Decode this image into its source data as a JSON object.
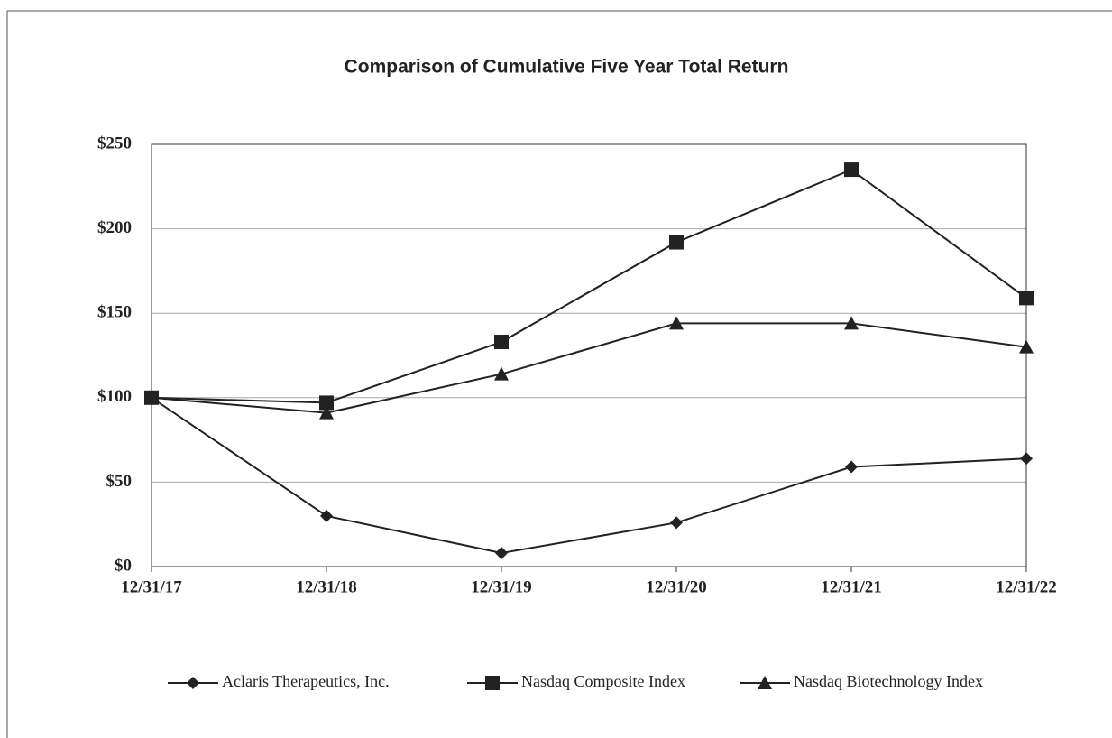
{
  "chart_data": {
    "type": "line",
    "title": "Comparison of Cumulative Five Year Total Return",
    "categories": [
      "12/31/17",
      "12/31/18",
      "12/31/19",
      "12/31/20",
      "12/31/21",
      "12/31/22"
    ],
    "series": [
      {
        "name": "Aclaris Therapeutics, Inc.",
        "color": "#222222",
        "marker": "diamond",
        "values": [
          100,
          30,
          8,
          26,
          59,
          64
        ]
      },
      {
        "name": "Nasdaq Composite Index",
        "color": "#222222",
        "marker": "square",
        "values": [
          100,
          97,
          133,
          192,
          235,
          159
        ]
      },
      {
        "name": "Nasdaq Biotechnology Index",
        "color": "#222222",
        "marker": "triangle",
        "values": [
          100,
          91,
          114,
          144,
          144,
          130
        ]
      }
    ],
    "ylim": [
      0,
      250
    ],
    "yticks": [
      {
        "value": 0,
        "label": "$0"
      },
      {
        "value": 50,
        "label": "$50"
      },
      {
        "value": 100,
        "label": "$100"
      },
      {
        "value": 150,
        "label": "$150"
      },
      {
        "value": 200,
        "label": "$200"
      },
      {
        "value": 250,
        "label": "$250"
      }
    ],
    "grid": true,
    "legend": "bottom"
  }
}
